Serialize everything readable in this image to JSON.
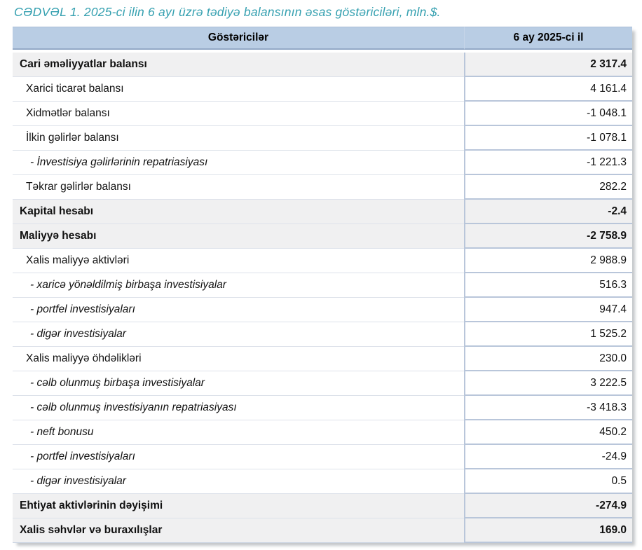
{
  "title": "CƏDVƏL 1. 2025-ci ilin 6 ayı üzrə tədiyə balansının əsas göstəriciləri, mln.$.",
  "colors": {
    "title": "#35a0b0",
    "header_bg": "#b9cde4",
    "section_row_bg": "#f0f0f1",
    "divider": "#b9c6da"
  },
  "table": {
    "columns": [
      {
        "label": "Göstəricilər"
      },
      {
        "label": "6 ay 2025-ci il"
      }
    ],
    "rows": [
      {
        "label": "Cari əməliyyatlar balansı",
        "value": "2 317.4",
        "style": "section"
      },
      {
        "label": "Xarici ticarət balansı",
        "value": "4 161.4",
        "style": "sub"
      },
      {
        "label": "Xidmətlər balansı",
        "value": "-1 048.1",
        "style": "sub"
      },
      {
        "label": "İlkin gəlirlər balansı",
        "value": "-1 078.1",
        "style": "sub"
      },
      {
        "label": "- İnvestisiya gəlirlərinin repatriasiyası",
        "value": "-1 221.3",
        "style": "detail"
      },
      {
        "label": "Təkrar gəlirlər balansı",
        "value": "282.2",
        "style": "sub"
      },
      {
        "label": "Kapital hesabı",
        "value": "-2.4",
        "style": "section"
      },
      {
        "label": "Maliyyə hesabı",
        "value": "-2 758.9",
        "style": "section"
      },
      {
        "label": "Xalis maliyyə aktivləri",
        "value": "2 988.9",
        "style": "sub"
      },
      {
        "label": "- xaricə yönəldilmiş birbaşa investisiyalar",
        "value": "516.3",
        "style": "detail"
      },
      {
        "label": "- portfel investisiyaları",
        "value": "947.4",
        "style": "detail"
      },
      {
        "label": "- digər investisiyalar",
        "value": "1 525.2",
        "style": "detail"
      },
      {
        "label": "Xalis maliyyə öhdəlikləri",
        "value": "230.0",
        "style": "sub"
      },
      {
        "label": "- cəlb olunmuş birbaşa investisiyalar",
        "value": "3 222.5",
        "style": "detail"
      },
      {
        "label": "- cəlb olunmuş investisiyanın repatriasiyası",
        "value": "-3 418.3",
        "style": "detail"
      },
      {
        "label": "- neft bonusu",
        "value": "450.2",
        "style": "detail"
      },
      {
        "label": "- portfel investisiyaları",
        "value": "-24.9",
        "style": "detail"
      },
      {
        "label": "- digər investisiyalar",
        "value": "0.5",
        "style": "detail"
      },
      {
        "label": "Ehtiyat aktivlərinin dəyişimi",
        "value": "-274.9",
        "style": "section"
      },
      {
        "label": "Xalis səhvlər və buraxılışlar",
        "value": "169.0",
        "style": "section"
      }
    ]
  }
}
